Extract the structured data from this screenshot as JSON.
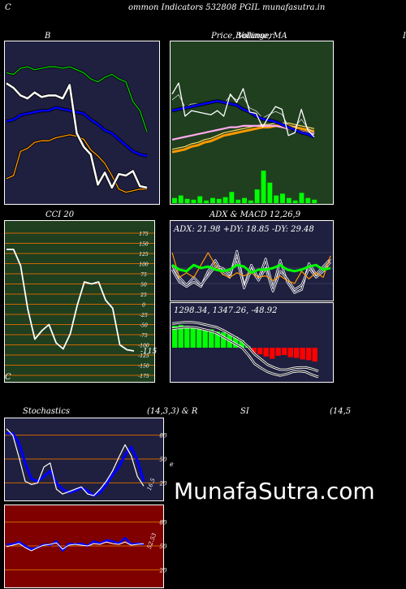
{
  "header": {
    "left_char": "C",
    "title": "ommon Indicators 532808 PGIL munafasutra.in",
    "right_char": "I",
    "footer_char": "C"
  },
  "watermark": "MunafaSutra.com",
  "colors": {
    "navy_bg": "#1f1f3f",
    "green_bg": "#1f3f1f",
    "red_bg": "#800000",
    "grid_orange": "#cc6600",
    "blue": "#0000ff",
    "bright_green": "#00ff00",
    "red": "#ff0000"
  },
  "chart_data": [
    {
      "id": "bollinger",
      "type": "line",
      "title": "B",
      "series": [
        {
          "color": "#00cc00",
          "values": [
            83,
            82,
            86,
            87,
            85,
            86,
            87,
            87,
            86,
            87,
            85,
            83,
            79,
            77,
            80,
            82,
            79,
            77,
            64,
            58,
            44
          ]
        },
        {
          "color": "#0000ff",
          "values": [
            51,
            52,
            55,
            56,
            57,
            58,
            58,
            60,
            59,
            58,
            57,
            56,
            52,
            49,
            45,
            43,
            39,
            35,
            31,
            29,
            28
          ]
        },
        {
          "color": "#ff9900",
          "values": [
            13,
            15,
            31,
            33,
            37,
            38,
            38,
            40,
            41,
            42,
            41,
            39,
            32,
            28,
            23,
            15,
            6,
            4,
            5,
            6,
            6
          ]
        },
        {
          "color": "#ffffff",
          "values": [
            76,
            73,
            68,
            66,
            70,
            67,
            68,
            68,
            66,
            75,
            43,
            34,
            29,
            9,
            17,
            7,
            16,
            15,
            18,
            8,
            7
          ]
        }
      ]
    },
    {
      "id": "price",
      "type": "line",
      "title": "Price,  Volume,  MA",
      "title_overprint": "Bollinger",
      "series": [
        {
          "color": "#ffffff",
          "values": [
            66,
            74,
            50,
            54,
            53,
            52,
            51,
            54,
            50,
            66,
            60,
            70,
            53,
            52,
            42,
            50,
            57,
            55,
            36,
            38,
            55,
            40,
            35
          ]
        },
        {
          "color": "#0000ff",
          "values": [
            54,
            55,
            56,
            57,
            58,
            59,
            60,
            61,
            60,
            59,
            58,
            55,
            53,
            50,
            48,
            47,
            46,
            44,
            42,
            40,
            38,
            37,
            35
          ]
        },
        {
          "color": "#ff9900",
          "values": [
            24,
            25,
            26,
            28,
            29,
            31,
            32,
            34,
            36,
            37,
            38,
            39,
            40,
            41,
            42,
            42,
            43,
            43,
            43,
            42,
            41,
            40,
            39
          ]
        },
        {
          "color": "#ffaaee",
          "values": [
            33,
            34,
            35,
            36,
            37,
            38,
            39,
            40,
            41,
            42,
            42,
            43,
            43,
            43,
            43,
            43,
            43,
            42,
            41,
            40,
            39,
            38,
            37
          ]
        }
      ],
      "volume": [
        6,
        9,
        5,
        4,
        8,
        3,
        6,
        5,
        7,
        13,
        4,
        6,
        3,
        16,
        38,
        24,
        9,
        11,
        6,
        3,
        12,
        6,
        4
      ]
    },
    {
      "id": "cci",
      "type": "line",
      "title": "CCI 20",
      "ylim": [
        -175,
        175
      ],
      "yticks": [
        "175",
        "150",
        "125",
        "100",
        "75",
        "50",
        "25",
        "0",
        "-25",
        "-50",
        "-75",
        "-100",
        "-125",
        "-150",
        "-175"
      ],
      "value_label": "-115",
      "series": [
        {
          "color": "#ffffff",
          "values": [
            135,
            135,
            95,
            -12,
            -86,
            -65,
            -50,
            -95,
            -110,
            -73,
            -2,
            55,
            50,
            55,
            10,
            -10,
            -100,
            -112,
            -115
          ]
        }
      ]
    },
    {
      "id": "adx",
      "type": "line",
      "title": "ADX  & MACD 12,26,9",
      "readout": "ADX: 21.98  +DY: 18.85 -DY: 29.48",
      "series": [
        {
          "color": "#ff9900",
          "values": [
            30,
            14,
            17,
            14,
            22,
            30,
            22,
            16,
            14,
            17,
            15,
            17,
            14,
            15,
            12,
            15,
            12,
            10,
            18,
            13,
            17,
            14,
            28
          ]
        },
        {
          "color": "#00ff00",
          "values": [
            22,
            19,
            18,
            22,
            20,
            21,
            19,
            18,
            19,
            22,
            21,
            17,
            19,
            19,
            20,
            22,
            19,
            18,
            19,
            21,
            22,
            19,
            20
          ]
        },
        {
          "color": "#ffffff",
          "values": [
            19,
            11,
            8,
            11,
            8,
            18,
            25,
            17,
            14,
            31,
            8,
            22,
            13,
            26,
            7,
            25,
            11,
            4,
            6,
            23,
            16,
            21,
            26
          ]
        },
        {
          "color": "#ffffff",
          "values": [
            22,
            14,
            9,
            14,
            9,
            15,
            21,
            20,
            16,
            26,
            7,
            19,
            12,
            20,
            5,
            18,
            13,
            6,
            9,
            20,
            14,
            18,
            24
          ]
        }
      ]
    },
    {
      "id": "macd",
      "type": "bar",
      "readout": "1298.34,  1347.26,  -48.92",
      "histogram": [
        30,
        31,
        30,
        28,
        26,
        24,
        25,
        22,
        21,
        18,
        15,
        10,
        2,
        -7,
        -9,
        -12,
        -15,
        -11,
        -10,
        -13,
        -14,
        -16,
        -17,
        -19
      ],
      "series": [
        {
          "color": "#ffffff",
          "values": [
            26,
            27,
            28,
            28,
            27,
            25,
            23,
            20,
            15,
            10,
            5,
            0,
            -10,
            -22,
            -28,
            -33,
            -36,
            -38,
            -36,
            -33,
            -32,
            -33,
            -37,
            -40
          ]
        },
        {
          "color": "#ffffff",
          "values": [
            33,
            34,
            35,
            35,
            34,
            32,
            30,
            28,
            24,
            19,
            14,
            9,
            1,
            -9,
            -16,
            -23,
            -27,
            -30,
            -30,
            -28,
            -27,
            -27,
            -29,
            -32
          ]
        }
      ]
    },
    {
      "id": "stochastics",
      "type": "line",
      "title": "Stochastics",
      "params": "(14,3,3) & R",
      "ylim": [
        0,
        100
      ],
      "yticks": [
        "80",
        "50",
        "20"
      ],
      "value_label": "16.5",
      "series": [
        {
          "color": "#0000ff",
          "values": [
            82,
            82,
            70,
            45,
            25,
            22,
            28,
            35,
            20,
            12,
            8,
            10,
            14,
            10,
            4,
            8,
            18,
            30,
            40,
            55,
            65,
            48,
            22
          ]
        },
        {
          "color": "#ffffff",
          "values": [
            88,
            80,
            52,
            22,
            18,
            20,
            40,
            45,
            12,
            6,
            9,
            12,
            15,
            6,
            4,
            12,
            22,
            35,
            52,
            68,
            54,
            28,
            16
          ]
        }
      ]
    },
    {
      "id": "rsi",
      "type": "line",
      "title": "SI",
      "params": "(14,5",
      "side_char": "e",
      "ylim": [
        0,
        100
      ],
      "yticks": [
        "80",
        "50",
        "20"
      ],
      "value_label": "52.53",
      "series": [
        {
          "color": "#0000ff",
          "values": [
            52,
            52,
            55,
            50,
            46,
            48,
            52,
            51,
            56,
            44,
            53,
            52,
            53,
            50,
            56,
            53,
            57,
            56,
            53,
            60,
            52,
            53,
            52
          ]
        },
        {
          "color": "#ffffff",
          "values": [
            49,
            51,
            53,
            48,
            44,
            48,
            51,
            52,
            54,
            46,
            51,
            52,
            51,
            50,
            53,
            52,
            55,
            53,
            52,
            55,
            51,
            52,
            53
          ]
        }
      ]
    }
  ]
}
